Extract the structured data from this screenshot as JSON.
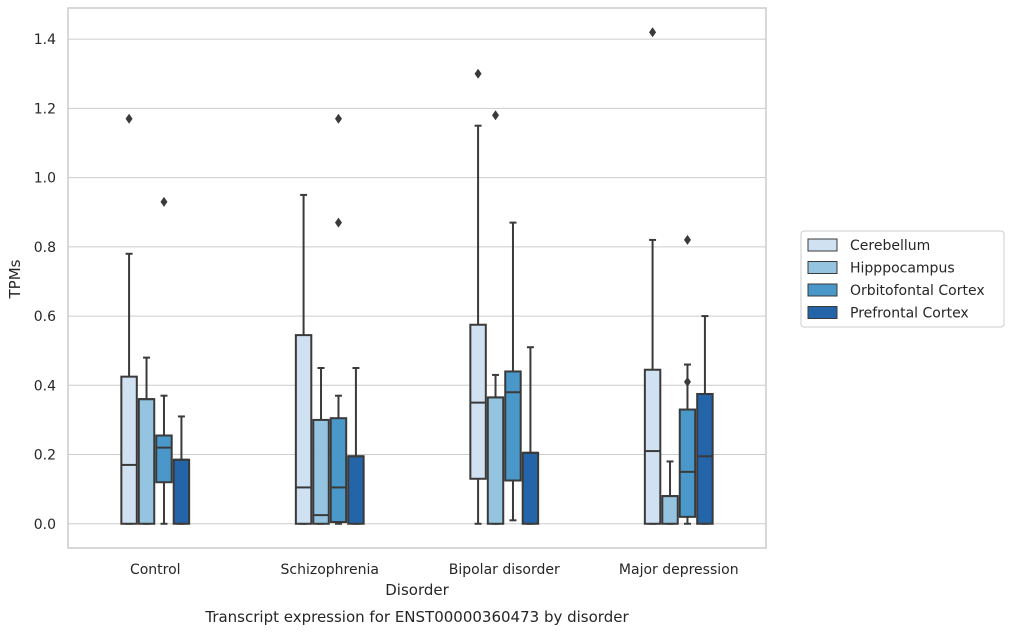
{
  "chart_data": {
    "type": "box",
    "title": "",
    "caption": "Transcript expression for ENST00000360473 by disorder",
    "xlabel": "Disorder",
    "ylabel": "TPMs",
    "ylim": [
      -0.07,
      1.49
    ],
    "yticks": [
      "0.0",
      "0.2",
      "0.4",
      "0.6",
      "0.8",
      "1.0",
      "1.2",
      "1.4"
    ],
    "grid": "horizontal",
    "legend_position": "right",
    "categories": [
      "Control",
      "Schizophrenia",
      "Bipolar disorder",
      "Major depression"
    ],
    "series": [
      {
        "name": "Cerebellum",
        "color": "#d0e1f2",
        "boxes": [
          {
            "whisker_low": 0.0,
            "q1": 0.0,
            "median": 0.17,
            "q3": 0.425,
            "whisker_high": 0.78,
            "outliers": [
              1.17
            ]
          },
          {
            "whisker_low": 0.0,
            "q1": 0.0,
            "median": 0.105,
            "q3": 0.545,
            "whisker_high": 0.95,
            "outliers": []
          },
          {
            "whisker_low": 0.0,
            "q1": 0.13,
            "median": 0.35,
            "q3": 0.575,
            "whisker_high": 1.15,
            "outliers": [
              1.3
            ]
          },
          {
            "whisker_low": 0.0,
            "q1": 0.0,
            "median": 0.21,
            "q3": 0.445,
            "whisker_high": 0.82,
            "outliers": [
              1.42
            ]
          }
        ]
      },
      {
        "name": "Hipppocampus",
        "color": "#94c4df",
        "boxes": [
          {
            "whisker_low": 0.0,
            "q1": 0.0,
            "median": 0.36,
            "q3": 0.36,
            "whisker_high": 0.48,
            "outliers": []
          },
          {
            "whisker_low": 0.0,
            "q1": 0.0,
            "median": 0.025,
            "q3": 0.3,
            "whisker_high": 0.45,
            "outliers": []
          },
          {
            "whisker_low": 0.0,
            "q1": 0.0,
            "median": 0.365,
            "q3": 0.365,
            "whisker_high": 0.43,
            "outliers": [
              1.18
            ]
          },
          {
            "whisker_low": 0.0,
            "q1": 0.0,
            "median": 0.08,
            "q3": 0.08,
            "whisker_high": 0.18,
            "outliers": []
          }
        ]
      },
      {
        "name": "Orbitofontal Cortex",
        "color": "#4a98c9",
        "boxes": [
          {
            "whisker_low": 0.0,
            "q1": 0.12,
            "median": 0.22,
            "q3": 0.255,
            "whisker_high": 0.37,
            "outliers": [
              0.93
            ]
          },
          {
            "whisker_low": 0.0,
            "q1": 0.005,
            "median": 0.105,
            "q3": 0.305,
            "whisker_high": 0.37,
            "outliers": [
              0.87,
              1.17
            ]
          },
          {
            "whisker_low": 0.01,
            "q1": 0.125,
            "median": 0.38,
            "q3": 0.44,
            "whisker_high": 0.87,
            "outliers": []
          },
          {
            "whisker_low": 0.0,
            "q1": 0.02,
            "median": 0.15,
            "q3": 0.33,
            "whisker_high": 0.46,
            "outliers": [
              0.41,
              0.82
            ]
          }
        ]
      },
      {
        "name": "Prefrontal Cortex",
        "color": "#2464a8",
        "boxes": [
          {
            "whisker_low": 0.0,
            "q1": 0.0,
            "median": 0.185,
            "q3": 0.185,
            "whisker_high": 0.31,
            "outliers": []
          },
          {
            "whisker_low": 0.0,
            "q1": 0.0,
            "median": 0.195,
            "q3": 0.195,
            "whisker_high": 0.45,
            "outliers": []
          },
          {
            "whisker_low": 0.0,
            "q1": 0.0,
            "median": 0.205,
            "q3": 0.205,
            "whisker_high": 0.51,
            "outliers": []
          },
          {
            "whisker_low": 0.0,
            "q1": 0.0,
            "median": 0.195,
            "q3": 0.375,
            "whisker_high": 0.6,
            "outliers": []
          }
        ]
      }
    ]
  }
}
